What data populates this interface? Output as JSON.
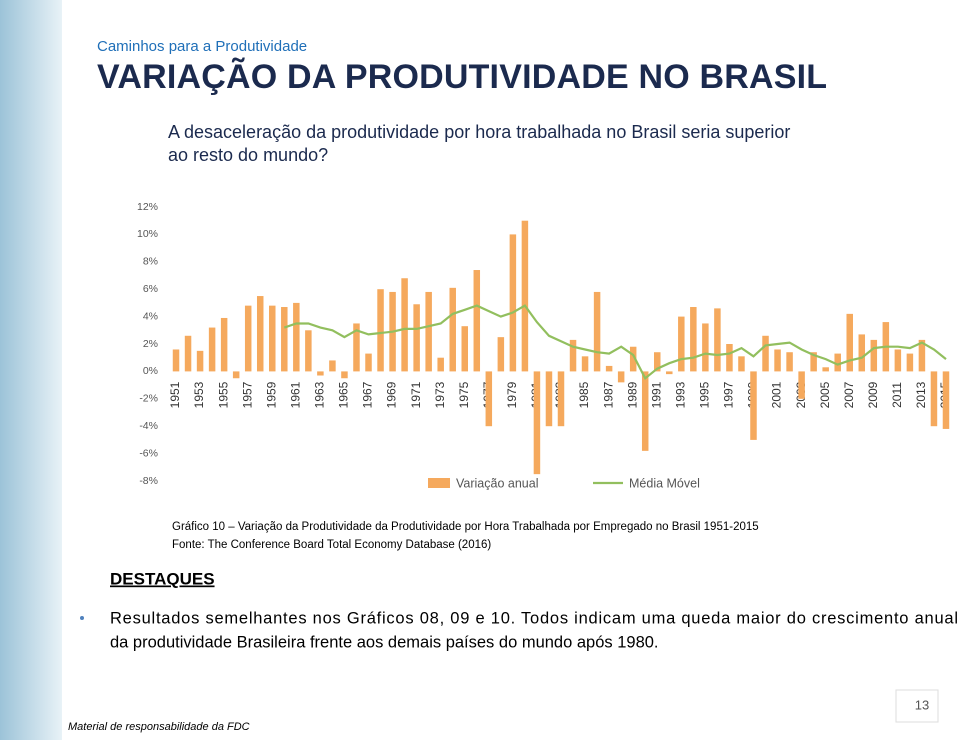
{
  "header": {
    "kicker": "Caminhos para a Produtividade",
    "title": "VARIAÇÃO DA PRODUTIVIDADE NO BRASIL",
    "question": [
      "A desaceleração da produtividade por hora trabalhada no Brasil seria superior",
      "ao resto do mundo?"
    ]
  },
  "chart_data": {
    "type": "bar",
    "categories": [
      "1951",
      null,
      "1953",
      null,
      "1955",
      null,
      "1957",
      null,
      "1959",
      null,
      "1961",
      null,
      "1963",
      null,
      "1965",
      null,
      "1967",
      null,
      "1969",
      null,
      "1971",
      null,
      "1973",
      null,
      "1975",
      null,
      "1977",
      null,
      "1979",
      null,
      "1981",
      null,
      "1983",
      null,
      "1985",
      null,
      "1987",
      null,
      "1989",
      null,
      "1991",
      null,
      "1993",
      null,
      "1995",
      null,
      "1997",
      null,
      "1999",
      null,
      "2001",
      null,
      "2003",
      null,
      "2005",
      null,
      "2007",
      null,
      "2009",
      null,
      "2011",
      null,
      "2013",
      null,
      "2015"
    ],
    "series": [
      {
        "name": "Variação anual",
        "type": "bar",
        "color": "#f5a95d",
        "values": [
          1.6,
          2.6,
          1.5,
          3.2,
          3.9,
          -0.5,
          4.8,
          5.5,
          4.8,
          4.7,
          5.0,
          3.0,
          -0.3,
          0.8,
          -0.5,
          3.5,
          1.3,
          6.0,
          5.8,
          6.8,
          4.9,
          5.8,
          1.0,
          6.1,
          3.3,
          7.4,
          -4.0,
          2.5,
          10.0,
          11.0,
          -7.5,
          -4.0,
          -4.0,
          2.3,
          1.1,
          5.8,
          0.4,
          -0.8,
          1.8,
          -5.8,
          1.4,
          -0.2,
          4.0,
          4.7,
          3.5,
          4.6,
          2.0,
          1.1,
          -5.0,
          2.6,
          1.6,
          1.4,
          -2.0,
          1.4,
          0.3,
          1.3,
          4.2,
          2.7,
          2.3,
          3.6,
          1.6,
          1.3,
          2.3,
          -4.0,
          -4.2
        ]
      },
      {
        "name": "Média Móvel",
        "type": "line",
        "color": "#92bf5e",
        "values": [
          null,
          null,
          null,
          null,
          null,
          null,
          null,
          null,
          null,
          3.2,
          3.5,
          3.5,
          3.2,
          3.0,
          2.5,
          3.0,
          2.7,
          2.8,
          2.9,
          3.1,
          3.1,
          3.3,
          3.5,
          4.2,
          4.5,
          4.8,
          4.4,
          4.0,
          4.3,
          4.8,
          3.6,
          2.6,
          2.2,
          1.8,
          1.6,
          1.4,
          1.3,
          1.8,
          1.2,
          -0.5,
          0.2,
          0.6,
          0.9,
          1.0,
          1.3,
          1.2,
          1.3,
          1.7,
          1.1,
          1.9,
          2.0,
          2.1,
          1.6,
          1.2,
          0.9,
          0.5,
          0.8,
          1.0,
          1.7,
          1.8,
          1.8,
          1.7,
          2.1,
          1.6,
          0.9
        ]
      }
    ],
    "ylim": [
      -8,
      12
    ],
    "yticks": [
      {
        "value": -8,
        "label": "-8%"
      },
      {
        "value": -6,
        "label": "-6%"
      },
      {
        "value": -4,
        "label": "-4%"
      },
      {
        "value": -2,
        "label": "-2%"
      },
      {
        "value": 0,
        "label": "0%"
      },
      {
        "value": 2,
        "label": "2%"
      },
      {
        "value": 4,
        "label": "4%"
      },
      {
        "value": 6,
        "label": "6%"
      },
      {
        "value": 8,
        "label": "8%"
      },
      {
        "value": 10,
        "label": "10%"
      },
      {
        "value": 12,
        "label": "12%"
      }
    ],
    "grid": false,
    "legend": "bottom"
  },
  "caption": [
    "Gráfico 10 – Variação da Produtividade da Produtividade por Hora Trabalhada por Empregado no Brasil 1951-2015",
    "Fonte: The Conference Board Total Economy Database (2016)"
  ],
  "highlights": {
    "title": "DESTAQUES",
    "text": [
      "Resultados semelhantes nos Gráficos 08, 09 e 10. Todos indicam uma queda maior do crescimento anual",
      "da produtividade Brasileira frente aos demais países do mundo após 1980."
    ]
  },
  "footer": "Material de responsabilidade da FDC",
  "page_number": "13"
}
